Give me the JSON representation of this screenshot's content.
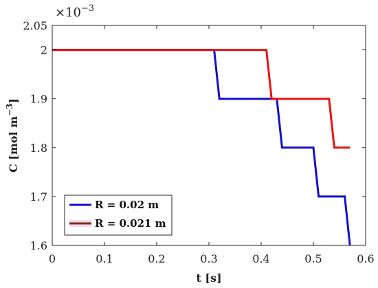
{
  "chart_data": {
    "type": "line",
    "xlabel": "t [s]",
    "ylabel": "C [mol m",
    "ylabel_sup": "−3",
    "ylabel_close": "]",
    "y_multiplier": "×10",
    "y_multiplier_sup": "−3",
    "xlim": [
      0,
      0.6
    ],
    "ylim": [
      1.6,
      2.05
    ],
    "x_ticks": [
      "0",
      "0.1",
      "0.2",
      "0.3",
      "0.4",
      "0.5",
      "0.6"
    ],
    "x_tick_values": [
      0,
      0.1,
      0.2,
      0.3,
      0.4,
      0.5,
      0.6
    ],
    "y_ticks": [
      "1.6",
      "1.7",
      "1.8",
      "1.9",
      "2",
      "2.05"
    ],
    "y_tick_values": [
      1.6,
      1.7,
      1.8,
      1.9,
      2.0,
      2.05
    ],
    "grid": false,
    "legend_position": "bottom-left",
    "series": [
      {
        "name": "R = 0.02 m",
        "color": "#1010d0",
        "legend_color": "#1010d0",
        "x": [
          0,
          0.31,
          0.32,
          0.43,
          0.44,
          0.5,
          0.51,
          0.56,
          0.57
        ],
        "y": [
          2.0,
          2.0,
          1.9,
          1.9,
          1.8,
          1.8,
          1.7,
          1.7,
          1.6
        ]
      },
      {
        "name": "R = 0.021 m",
        "color": "#ee1010",
        "legend_color": "#7a3010",
        "x": [
          0,
          0.41,
          0.42,
          0.53,
          0.54,
          0.57
        ],
        "y": [
          2.0,
          2.0,
          1.9,
          1.9,
          1.8,
          1.8
        ]
      }
    ]
  }
}
